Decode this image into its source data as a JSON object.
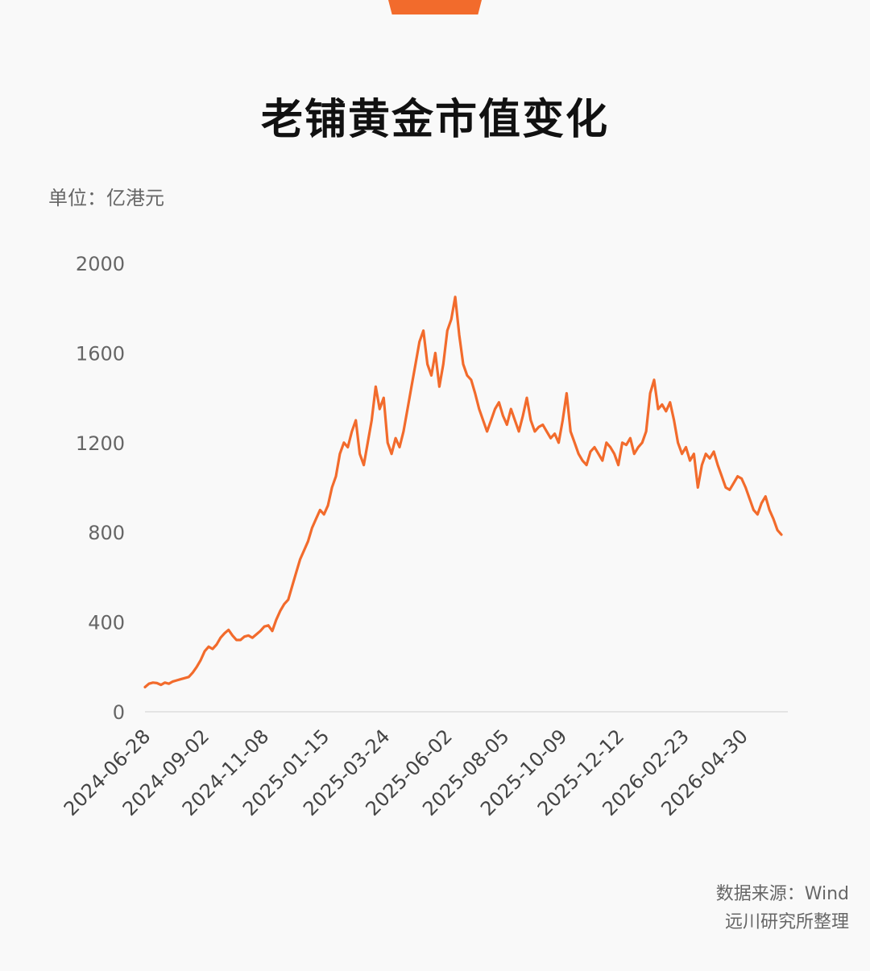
{
  "title": "老铺黄金市值变化",
  "unit_label": "单位：亿港元",
  "source_line1": "数据来源：Wind",
  "source_line2": "远川研究所整理",
  "colors": {
    "line": "#f26b2c",
    "axis": "#dddddd",
    "accent": "#f26b2c"
  },
  "chart_data": {
    "type": "line",
    "title": "老铺黄金市值变化",
    "ylabel": "亿港元",
    "ylim": [
      0,
      2000
    ],
    "yticks": [
      0,
      400,
      800,
      1200,
      1600,
      2000
    ],
    "xticks": [
      "2024-06-28",
      "2024-09-02",
      "2024-11-08",
      "2025-01-15",
      "2025-03-24",
      "2025-06-02",
      "2025-08-05",
      "2025-10-09",
      "2025-12-12",
      "2026-02-23",
      "2026-04-30"
    ],
    "grid": false,
    "series": [
      {
        "name": "",
        "x_start": "2024-06-28",
        "x_end": "2026-06-20",
        "values": [
          110,
          125,
          130,
          128,
          120,
          130,
          125,
          135,
          140,
          145,
          150,
          155,
          175,
          200,
          230,
          270,
          290,
          280,
          300,
          330,
          350,
          365,
          340,
          320,
          320,
          335,
          340,
          330,
          345,
          360,
          380,
          385,
          360,
          410,
          450,
          480,
          500,
          560,
          620,
          680,
          720,
          760,
          820,
          860,
          900,
          880,
          920,
          1000,
          1050,
          1150,
          1200,
          1180,
          1250,
          1300,
          1150,
          1100,
          1200,
          1300,
          1450,
          1350,
          1400,
          1200,
          1150,
          1220,
          1180,
          1250,
          1350,
          1450,
          1550,
          1650,
          1700,
          1550,
          1500,
          1600,
          1450,
          1550,
          1700,
          1750,
          1850,
          1680,
          1550,
          1500,
          1480,
          1420,
          1350,
          1300,
          1250,
          1300,
          1350,
          1380,
          1320,
          1280,
          1350,
          1300,
          1250,
          1320,
          1400,
          1300,
          1250,
          1270,
          1280,
          1250,
          1220,
          1240,
          1200,
          1300,
          1420,
          1250,
          1200,
          1150,
          1120,
          1100,
          1160,
          1180,
          1150,
          1120,
          1200,
          1180,
          1150,
          1100,
          1200,
          1190,
          1220,
          1150,
          1180,
          1200,
          1250,
          1420,
          1480,
          1350,
          1370,
          1340,
          1380,
          1300,
          1200,
          1150,
          1180,
          1120,
          1150,
          1000,
          1100,
          1150,
          1130,
          1160,
          1100,
          1050,
          1000,
          990,
          1020,
          1050,
          1040,
          1000,
          950,
          900,
          880,
          930,
          960,
          900,
          860,
          810,
          790
        ]
      }
    ]
  }
}
